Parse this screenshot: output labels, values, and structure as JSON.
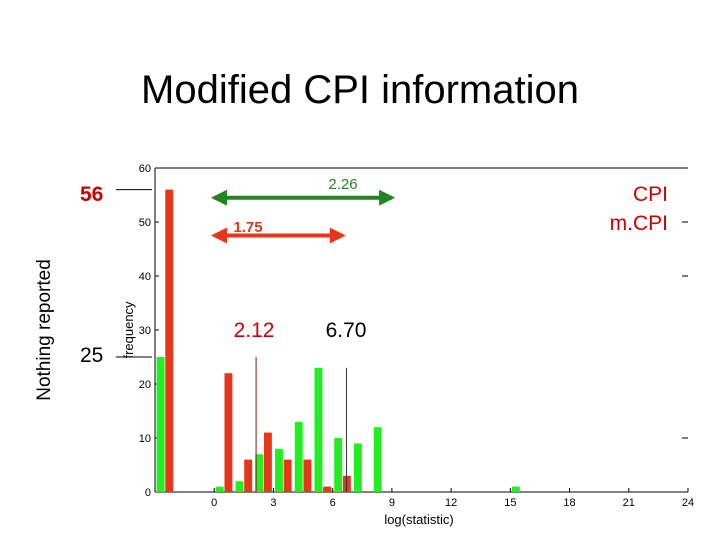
{
  "slide": {
    "title": "Modified CPI information"
  },
  "colors": {
    "cpi": "#e8361a",
    "mcpi": "#22ee22",
    "green_arrow": "#22851f",
    "red_arrow": "#e8361a",
    "red_text": "#cc0000"
  },
  "chart_data": {
    "type": "bar",
    "title": "",
    "xlabel": "log(statistic)",
    "ylabel": "frequency",
    "outer_ylabel": "Nothing reported",
    "xlim": [
      -3,
      24
    ],
    "ylim": [
      0,
      60
    ],
    "xticks": [
      0,
      3,
      6,
      9,
      12,
      15,
      18,
      21,
      24
    ],
    "yticks": [
      0,
      10,
      20,
      30,
      40,
      50,
      60
    ],
    "legend": {
      "position": "top-right",
      "entries": [
        "CPI",
        "m.CPI"
      ]
    },
    "series": [
      {
        "name": "CPI",
        "color": "#e8361a",
        "points": [
          {
            "x": -2.5,
            "y": 56
          },
          {
            "x": 0.5,
            "y": 22
          },
          {
            "x": 1.5,
            "y": 6
          },
          {
            "x": 2.5,
            "y": 11
          },
          {
            "x": 3.5,
            "y": 6
          },
          {
            "x": 4.5,
            "y": 6
          },
          {
            "x": 5.5,
            "y": 1
          },
          {
            "x": 6.5,
            "y": 3
          }
        ]
      },
      {
        "name": "m.CPI",
        "color": "#22ee22",
        "points": [
          {
            "x": -2.5,
            "y": 25
          },
          {
            "x": 0.5,
            "y": 1
          },
          {
            "x": 1.5,
            "y": 2
          },
          {
            "x": 2.5,
            "y": 7
          },
          {
            "x": 3.5,
            "y": 8
          },
          {
            "x": 4.5,
            "y": 13
          },
          {
            "x": 5.5,
            "y": 23
          },
          {
            "x": 6.5,
            "y": 10
          },
          {
            "x": 7.5,
            "y": 9
          },
          {
            "x": 8.5,
            "y": 12
          },
          {
            "x": 15.5,
            "y": 1
          }
        ]
      }
    ],
    "annotations": {
      "nothing_cpi": {
        "label": "56",
        "value": 56
      },
      "nothing_mcpi": {
        "label": "25",
        "value": 25
      },
      "green_range": {
        "label": "2.26",
        "x_start": 0,
        "x_end": 9,
        "y": 54.5
      },
      "red_range": {
        "label": "1.75",
        "x_start": 0,
        "x_end": 6.5,
        "y": 47.5
      },
      "cpi_median": {
        "label": "2.12",
        "x": 2.12,
        "y_top": 25
      },
      "mcpi_median": {
        "label": "6.70",
        "x": 6.7,
        "y_top": 23
      }
    }
  }
}
